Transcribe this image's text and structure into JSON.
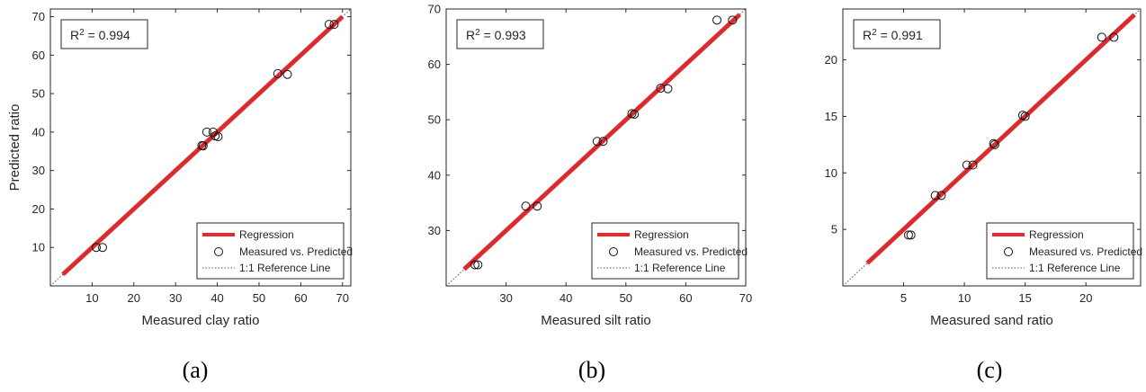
{
  "chart_data": [
    {
      "type": "scatter",
      "panel_label": "(a)",
      "xlabel": "Measured clay ratio",
      "ylabel": "Predicted ratio",
      "xlim": [
        0,
        72
      ],
      "ylim": [
        0,
        72
      ],
      "xticks": [
        10,
        20,
        30,
        40,
        50,
        60,
        70
      ],
      "yticks": [
        10,
        20,
        30,
        40,
        50,
        60,
        70
      ],
      "r2_prefix": "R",
      "r2_sup": "2",
      "r2_value": " = 0.994",
      "grid": false,
      "legend_position": "bottom-right",
      "legend": [
        "Regression",
        "Measured vs. Predicted",
        "1:1 Reference Line"
      ],
      "regression": {
        "x": [
          3,
          70
        ],
        "y": [
          3,
          70
        ]
      },
      "reference_line": {
        "x": [
          0,
          72
        ],
        "y": [
          0,
          72
        ]
      },
      "points": [
        {
          "x": 11.0,
          "y": 10.0
        },
        {
          "x": 12.5,
          "y": 10.0
        },
        {
          "x": 36.3,
          "y": 36.5
        },
        {
          "x": 36.6,
          "y": 36.4
        },
        {
          "x": 37.5,
          "y": 40.0
        },
        {
          "x": 39.0,
          "y": 40.0
        },
        {
          "x": 39.5,
          "y": 39.0
        },
        {
          "x": 40.2,
          "y": 38.8
        },
        {
          "x": 54.5,
          "y": 55.2
        },
        {
          "x": 56.8,
          "y": 55.0
        },
        {
          "x": 66.8,
          "y": 68.0
        },
        {
          "x": 68.0,
          "y": 68.0
        }
      ]
    },
    {
      "type": "scatter",
      "panel_label": "(b)",
      "xlabel": "Measured silt ratio",
      "ylabel": "",
      "xlim": [
        20,
        70
      ],
      "ylim": [
        20,
        70
      ],
      "xticks": [
        30,
        40,
        50,
        60,
        70
      ],
      "yticks": [
        30,
        40,
        50,
        60,
        70
      ],
      "r2_prefix": "R",
      "r2_sup": "2",
      "r2_value": " = 0.993",
      "grid": false,
      "legend_position": "bottom-right",
      "legend": [
        "Regression",
        "Measured vs. Predicted",
        "1:1 Reference Line"
      ],
      "regression": {
        "x": [
          23,
          69
        ],
        "y": [
          23,
          69
        ]
      },
      "reference_line": {
        "x": [
          20,
          70
        ],
        "y": [
          20,
          70
        ]
      },
      "points": [
        {
          "x": 24.8,
          "y": 23.8
        },
        {
          "x": 25.3,
          "y": 23.8
        },
        {
          "x": 33.3,
          "y": 34.4
        },
        {
          "x": 35.2,
          "y": 34.4
        },
        {
          "x": 45.2,
          "y": 46.1
        },
        {
          "x": 46.2,
          "y": 46.1
        },
        {
          "x": 51.0,
          "y": 51.1
        },
        {
          "x": 51.4,
          "y": 51.0
        },
        {
          "x": 55.8,
          "y": 55.7
        },
        {
          "x": 57.0,
          "y": 55.6
        },
        {
          "x": 65.2,
          "y": 68.0
        },
        {
          "x": 67.8,
          "y": 68.0
        }
      ]
    },
    {
      "type": "scatter",
      "panel_label": "(c)",
      "xlabel": "Measured sand ratio",
      "ylabel": "",
      "xlim": [
        0,
        24.5
      ],
      "ylim": [
        0,
        24.5
      ],
      "xticks": [
        5,
        10,
        15,
        20
      ],
      "yticks": [
        5,
        10,
        15,
        20
      ],
      "r2_prefix": "R",
      "r2_sup": "2",
      "r2_value": " = 0.991",
      "grid": false,
      "legend_position": "bottom-right",
      "legend": [
        "Regression",
        "Measured vs. Predicted",
        "1:1 Reference Line"
      ],
      "regression": {
        "x": [
          2,
          24
        ],
        "y": [
          2,
          24
        ]
      },
      "reference_line": {
        "x": [
          0,
          24.5
        ],
        "y": [
          0,
          24.5
        ]
      },
      "points": [
        {
          "x": 5.4,
          "y": 4.5
        },
        {
          "x": 5.6,
          "y": 4.5
        },
        {
          "x": 7.6,
          "y": 8.0
        },
        {
          "x": 8.1,
          "y": 8.0
        },
        {
          "x": 10.2,
          "y": 10.7
        },
        {
          "x": 10.7,
          "y": 10.7
        },
        {
          "x": 12.4,
          "y": 12.6
        },
        {
          "x": 12.5,
          "y": 12.5
        },
        {
          "x": 14.8,
          "y": 15.1
        },
        {
          "x": 15.0,
          "y": 15.0
        },
        {
          "x": 21.3,
          "y": 22.0
        },
        {
          "x": 22.3,
          "y": 22.0
        }
      ]
    }
  ],
  "colors": {
    "regression": "#e8282b",
    "markers": "#111111",
    "reference": "#555555",
    "axes": "#262626"
  }
}
